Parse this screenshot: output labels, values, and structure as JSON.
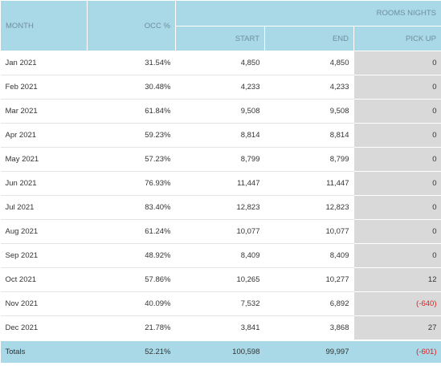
{
  "header": {
    "month": "MONTH",
    "occ": "OCC %",
    "rooms_nights": "ROOMS NIGHTS",
    "start": "START",
    "end": "END",
    "pickup": "PICK UP"
  },
  "rows": [
    {
      "month": "Jan 2021",
      "occ": "31.54%",
      "start": "4,850",
      "end": "4,850",
      "pickup": "0",
      "negative": false
    },
    {
      "month": "Feb 2021",
      "occ": "30.48%",
      "start": "4,233",
      "end": "4,233",
      "pickup": "0",
      "negative": false
    },
    {
      "month": "Mar 2021",
      "occ": "61.84%",
      "start": "9,508",
      "end": "9,508",
      "pickup": "0",
      "negative": false
    },
    {
      "month": "Apr 2021",
      "occ": "59.23%",
      "start": "8,814",
      "end": "8,814",
      "pickup": "0",
      "negative": false
    },
    {
      "month": "May 2021",
      "occ": "57.23%",
      "start": "8,799",
      "end": "8,799",
      "pickup": "0",
      "negative": false
    },
    {
      "month": "Jun 2021",
      "occ": "76.93%",
      "start": "11,447",
      "end": "11,447",
      "pickup": "0",
      "negative": false
    },
    {
      "month": "Jul 2021",
      "occ": "83.40%",
      "start": "12,823",
      "end": "12,823",
      "pickup": "0",
      "negative": false
    },
    {
      "month": "Aug 2021",
      "occ": "61.24%",
      "start": "10,077",
      "end": "10,077",
      "pickup": "0",
      "negative": false
    },
    {
      "month": "Sep 2021",
      "occ": "48.92%",
      "start": "8,409",
      "end": "8,409",
      "pickup": "0",
      "negative": false
    },
    {
      "month": "Oct 2021",
      "occ": "57.86%",
      "start": "10,265",
      "end": "10,277",
      "pickup": "12",
      "negative": false
    },
    {
      "month": "Nov 2021",
      "occ": "40.09%",
      "start": "7,532",
      "end": "6,892",
      "pickup": "(-640)",
      "negative": true
    },
    {
      "month": "Dec 2021",
      "occ": "21.78%",
      "start": "3,841",
      "end": "3,868",
      "pickup": "27",
      "negative": false
    }
  ],
  "totals": {
    "label": "Totals",
    "occ": "52.21%",
    "start": "100,598",
    "end": "99,997",
    "pickup": "(-601)",
    "negative": true
  },
  "colors": {
    "header_bg": "#a9d8e6",
    "header_text": "#6f8f9b",
    "pickup_bg": "#d9d9d9",
    "negative": "#e02020"
  }
}
